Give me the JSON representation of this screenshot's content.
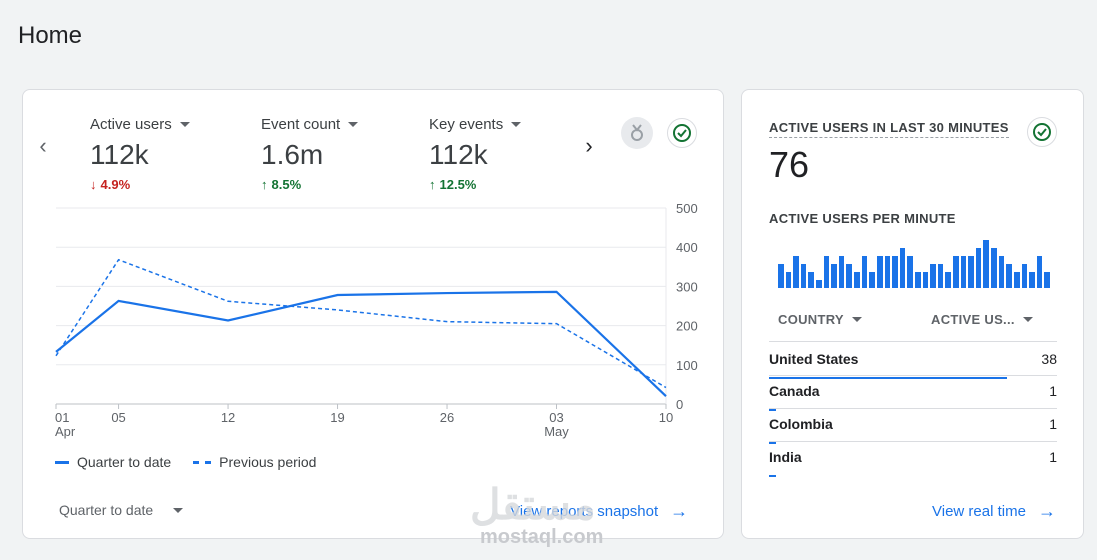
{
  "page": {
    "title": "Home"
  },
  "overview": {
    "metrics": [
      {
        "label": "Active users",
        "value": "112k",
        "change": "4.9%",
        "direction": "down",
        "arrow": "↓"
      },
      {
        "label": "Event count",
        "value": "1.6m",
        "change": "8.5%",
        "direction": "up",
        "arrow": "↑"
      },
      {
        "label": "Key events",
        "value": "112k",
        "change": "12.5%",
        "direction": "up",
        "arrow": "↑"
      }
    ],
    "icons": {
      "prev": "chevron-left-icon",
      "next": "chevron-right-icon",
      "insights": "insights-icon",
      "status": "check-circle-icon"
    },
    "legend": {
      "current": "Quarter to date",
      "previous": "Previous period"
    },
    "date_range": "Quarter to date",
    "link": "View reports snapshot"
  },
  "chart_data": {
    "type": "line",
    "x": [
      "01 Apr",
      "05",
      "12",
      "19",
      "26",
      "03 May",
      "10"
    ],
    "x_tick_labels": [
      {
        "day": "01",
        "month": "Apr"
      },
      {
        "day": "05",
        "month": ""
      },
      {
        "day": "12",
        "month": ""
      },
      {
        "day": "19",
        "month": ""
      },
      {
        "day": "26",
        "month": ""
      },
      {
        "day": "03",
        "month": "May"
      },
      {
        "day": "10",
        "month": ""
      }
    ],
    "y_ticks": [
      "500",
      "400",
      "300",
      "200",
      "100",
      "0"
    ],
    "ylim": [
      0,
      500
    ],
    "series": [
      {
        "name": "Quarter to date",
        "style": "solid",
        "points": [
          [
            0,
            133
          ],
          [
            4,
            263
          ],
          [
            11,
            213
          ],
          [
            18,
            278
          ],
          [
            25,
            283
          ],
          [
            32,
            286
          ],
          [
            39,
            20
          ]
        ]
      },
      {
        "name": "Previous period",
        "style": "dashed",
        "points": [
          [
            0,
            123
          ],
          [
            4,
            368
          ],
          [
            11,
            262
          ],
          [
            18,
            240
          ],
          [
            25,
            210
          ],
          [
            32,
            205
          ],
          [
            39,
            42
          ]
        ]
      }
    ],
    "grid": true,
    "legend_position": "bottom-left",
    "color": "#1a73e8"
  },
  "realtime": {
    "title": "ACTIVE USERS IN LAST 30 MINUTES",
    "count": "76",
    "per_minute_label": "ACTIVE USERS PER MINUTE",
    "per_minute_values": [
      3,
      2,
      4,
      3,
      2,
      1,
      4,
      3,
      4,
      3,
      2,
      4,
      2,
      4,
      4,
      4,
      5,
      4,
      2,
      2,
      3,
      3,
      2,
      4,
      4,
      4,
      5,
      6,
      5,
      4,
      3,
      2,
      3,
      2,
      4,
      2
    ],
    "columns": {
      "country": "COUNTRY",
      "users": "ACTIVE US..."
    },
    "rows": [
      {
        "country": "United States",
        "value": "38",
        "share": 1.0
      },
      {
        "country": "Canada",
        "value": "1",
        "share": 0.03
      },
      {
        "country": "Colombia",
        "value": "1",
        "share": 0.03
      },
      {
        "country": "India",
        "value": "1",
        "share": 0.03
      }
    ],
    "link": "View real time"
  },
  "watermark": {
    "main": "مستقل",
    "sub": "mostaql.com"
  }
}
